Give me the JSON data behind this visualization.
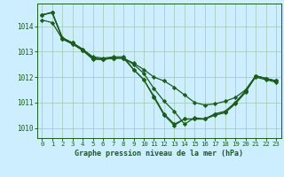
{
  "title": "Graphe pression niveau de la mer (hPa)",
  "background_color": "#cceeff",
  "grid_color": "#aaccbb",
  "line_color": "#1a5c1a",
  "xlim": [
    -0.5,
    23.5
  ],
  "ylim": [
    1009.6,
    1014.9
  ],
  "yticks": [
    1010,
    1011,
    1012,
    1013,
    1014
  ],
  "xticks": [
    0,
    1,
    2,
    3,
    4,
    5,
    6,
    7,
    8,
    9,
    10,
    11,
    12,
    13,
    14,
    15,
    16,
    17,
    18,
    19,
    20,
    21,
    22,
    23
  ],
  "series": [
    [
      1014.45,
      1014.55,
      1013.5,
      1013.35,
      1013.1,
      1012.75,
      1012.7,
      1012.75,
      1012.75,
      1012.55,
      1012.3,
      1012.0,
      1011.85,
      1011.6,
      1011.3,
      1011.0,
      1010.9,
      1010.95,
      1011.05,
      1011.2,
      1011.5,
      1012.05,
      1011.95,
      1011.85
    ],
    [
      1014.25,
      1014.15,
      1013.5,
      1013.3,
      1013.05,
      1012.7,
      1012.7,
      1012.75,
      1012.75,
      1012.5,
      1012.15,
      1011.55,
      1011.05,
      1010.65,
      1010.15,
      1010.4,
      1010.35,
      1010.5,
      1010.6,
      1010.95,
      1011.4,
      1012.05,
      1011.95,
      1011.85
    ],
    [
      1014.45,
      1014.55,
      1013.55,
      1013.35,
      1013.05,
      1012.75,
      1012.7,
      1012.75,
      1012.75,
      1012.3,
      1011.9,
      1011.2,
      1010.5,
      1010.1,
      1010.35,
      1010.35,
      1010.35,
      1010.55,
      1010.65,
      1011.0,
      1011.45,
      1012.05,
      1011.95,
      1011.85
    ],
    [
      1014.45,
      1014.55,
      1013.55,
      1013.35,
      1013.1,
      1012.8,
      1012.75,
      1012.8,
      1012.8,
      1012.3,
      1011.9,
      1011.25,
      1010.55,
      1010.15,
      1010.35,
      1010.35,
      1010.35,
      1010.55,
      1010.65,
      1011.0,
      1011.45,
      1012.0,
      1011.9,
      1011.8
    ]
  ]
}
